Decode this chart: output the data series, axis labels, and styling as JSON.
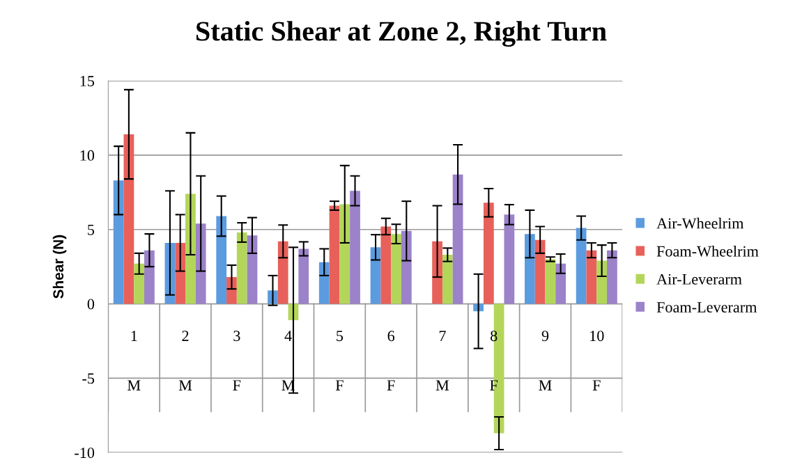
{
  "chart_data": {
    "type": "bar",
    "title": "Static Shear at Zone 2, Right Turn",
    "ylabel": "Shear (N)",
    "categories": [
      "1\nM",
      "2\nM",
      "3\nF",
      "4\nM",
      "5\nF",
      "6\nF",
      "7\nM",
      "8\nF",
      "9\nM",
      "10\nF"
    ],
    "series": [
      {
        "name": "Air-Wheelrim",
        "color": "#5b9be0",
        "values": [
          8.3,
          4.1,
          5.9,
          0.9,
          2.8,
          3.8,
          0,
          -0.5,
          4.7,
          5.1
        ],
        "errors": [
          2.3,
          3.5,
          1.35,
          1.0,
          0.9,
          0.85,
          null,
          2.5,
          1.6,
          0.8
        ]
      },
      {
        "name": "Foam-Wheelrim",
        "color": "#e8605a",
        "values": [
          11.4,
          4.1,
          1.8,
          4.2,
          6.6,
          5.2,
          4.2,
          6.8,
          4.3,
          3.6
        ],
        "errors": [
          3.0,
          1.9,
          0.8,
          1.1,
          0.3,
          0.55,
          2.4,
          0.95,
          0.9,
          0.5
        ]
      },
      {
        "name": "Air-Leverarm",
        "color": "#b3d65a",
        "values": [
          2.7,
          7.4,
          4.8,
          -1.1,
          6.7,
          4.7,
          3.3,
          -8.7,
          3.0,
          2.9
        ],
        "errors": [
          0.7,
          4.1,
          0.65,
          4.9,
          2.6,
          0.65,
          0.45,
          1.1,
          0.15,
          1.05
        ]
      },
      {
        "name": "Foam-Leverarm",
        "color": "#9b82c9",
        "values": [
          3.6,
          5.4,
          4.6,
          3.7,
          7.6,
          4.9,
          8.7,
          6.0,
          2.7,
          3.6
        ],
        "errors": [
          1.1,
          3.2,
          1.2,
          0.47,
          1.0,
          2.0,
          2.0,
          0.67,
          0.65,
          0.5
        ]
      }
    ],
    "ylim": [
      -10,
      15
    ],
    "yticks": [
      -10,
      -5,
      0,
      5,
      10,
      15
    ],
    "grid": "y",
    "legend": "right"
  }
}
